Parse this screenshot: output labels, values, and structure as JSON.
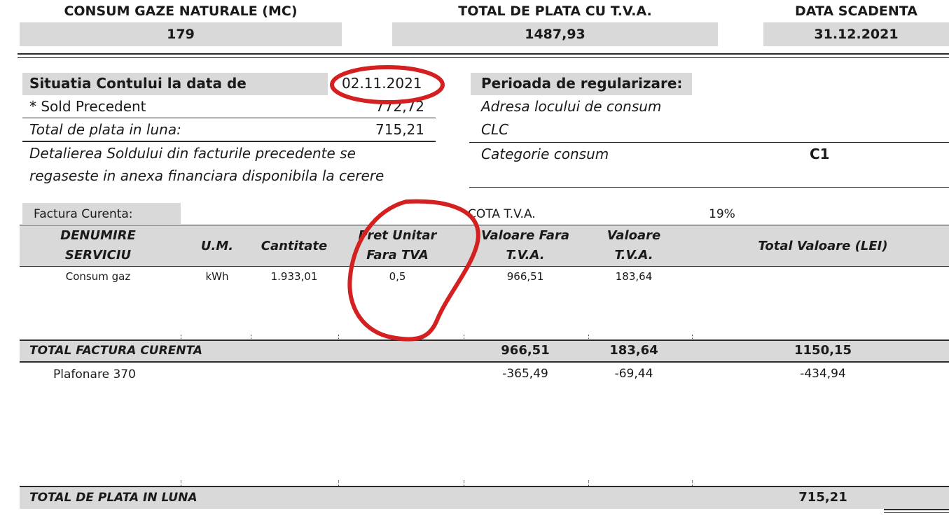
{
  "header": {
    "consum_label": "CONSUM GAZE NATURALE (MC)",
    "consum_value": "179",
    "total_label": "TOTAL DE PLATA CU T.V.A.",
    "total_value": "1487,93",
    "scadenta_label": "DATA SCADENTA",
    "scadenta_value": "31.12.2021"
  },
  "situatie": {
    "title": "Situatia Contului la data de",
    "date": "02.11.2021",
    "sold_label": "* Sold Precedent",
    "sold_value": "772,72",
    "total_luna_label": "Total de plata in luna:",
    "total_luna_value": "715,21",
    "note_line1": "Detalierea Soldului din facturile precedente se",
    "note_line2": "regaseste in anexa financiara disponibila la cerere"
  },
  "regularizare": {
    "title": "Perioada de regularizare:",
    "adresa_label": "Adresa locului de consum",
    "clc_label": "CLC",
    "categorie_label": "Categorie consum",
    "categorie_value": "C1"
  },
  "factura": {
    "label": "Factura Curenta:",
    "cota_label": "COTA T.V.A.",
    "cota_value": "19%",
    "columns": {
      "denumire": [
        "DENUMIRE",
        "SERVICIU"
      ],
      "um": "U.M.",
      "cantitate": "Cantitate",
      "pret": [
        "Pret Unitar",
        "Fara TVA"
      ],
      "valoare_fara": [
        "Valoare Fara",
        "T.V.A."
      ],
      "valoare_tva": [
        "Valoare",
        "T.V.A."
      ],
      "total": "Total Valoare (LEI)"
    },
    "row": {
      "denumire": "Consum gaz",
      "um": "kWh",
      "cantitate": "1.933,01",
      "pret": "0,5",
      "valoare_fara": "966,51",
      "valoare_tva": "183,64"
    },
    "total_row": {
      "label": "TOTAL FACTURA CURENTA",
      "valoare_fara": "966,51",
      "valoare_tva": "183,64",
      "total": "1150,15"
    },
    "plafonare": {
      "label": "Plafonare 370",
      "valoare_fara": "-365,49",
      "valoare_tva": "-69,44",
      "total": "-434,94"
    },
    "total_plata": {
      "label": "TOTAL DE PLATA IN LUNA",
      "value": "715,21"
    }
  },
  "annotation_color": "#d42020"
}
